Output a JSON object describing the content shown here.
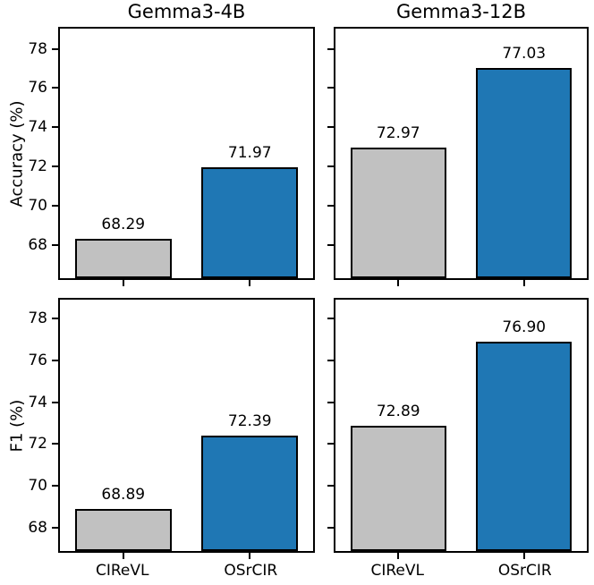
{
  "chart_data": [
    {
      "type": "bar",
      "panel": "top-left",
      "title": "Gemma3-4B",
      "ylabel": "Accuracy (%)",
      "categories": [
        "CIReVL",
        "OSrCIR"
      ],
      "values": [
        68.29,
        71.97
      ],
      "value_labels": [
        "68.29",
        "71.97"
      ],
      "ylim": [
        66.29,
        79.03
      ],
      "yticks": [
        68,
        70,
        72,
        74,
        76,
        78
      ],
      "show_ytick_labels": true,
      "show_xtick_labels": false,
      "grid": false
    },
    {
      "type": "bar",
      "panel": "top-right",
      "title": "Gemma3-12B",
      "ylabel": "",
      "categories": [
        "CIReVL",
        "OSrCIR"
      ],
      "values": [
        72.97,
        77.03
      ],
      "value_labels": [
        "72.97",
        "77.03"
      ],
      "ylim": [
        66.29,
        79.03
      ],
      "yticks": [
        68,
        70,
        72,
        74,
        76,
        78
      ],
      "show_ytick_labels": false,
      "show_xtick_labels": false,
      "grid": false
    },
    {
      "type": "bar",
      "panel": "bottom-left",
      "title": "",
      "ylabel": "F1 (%)",
      "categories": [
        "CIReVL",
        "OSrCIR"
      ],
      "values": [
        68.89,
        72.39
      ],
      "value_labels": [
        "68.89",
        "72.39"
      ],
      "ylim": [
        66.89,
        78.9
      ],
      "yticks": [
        68,
        70,
        72,
        74,
        76,
        78
      ],
      "show_ytick_labels": true,
      "show_xtick_labels": true,
      "grid": false
    },
    {
      "type": "bar",
      "panel": "bottom-right",
      "title": "",
      "ylabel": "",
      "categories": [
        "CIReVL",
        "OSrCIR"
      ],
      "values": [
        72.89,
        76.9
      ],
      "value_labels": [
        "72.89",
        "76.90"
      ],
      "ylim": [
        66.89,
        78.9
      ],
      "yticks": [
        68,
        70,
        72,
        74,
        76,
        78
      ],
      "show_ytick_labels": false,
      "show_xtick_labels": true,
      "grid": false
    }
  ],
  "style": {
    "bar_fill_colors": [
      "#c1c1c1",
      "#1f77b4"
    ],
    "bar_edge_color": "#000000",
    "axis_color": "#000000",
    "text_color": "#000000",
    "background": "#ffffff"
  }
}
